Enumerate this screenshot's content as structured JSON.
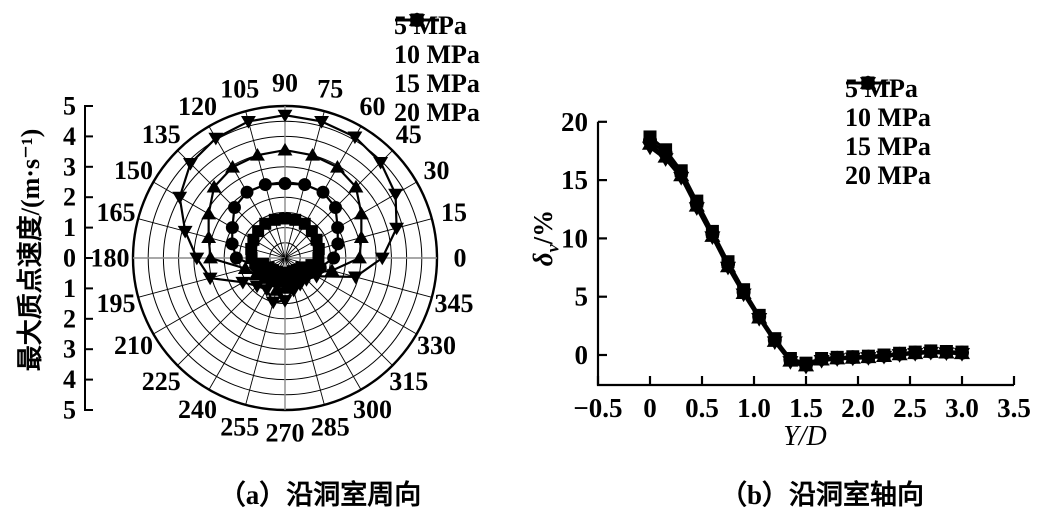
{
  "chart_data": [
    {
      "type": "polar-line",
      "caption": "（a）沿洞室周向",
      "radial_axis_label": "最大质点速度/(m·s⁻¹)",
      "radial_tick_labels": [
        "5",
        "4",
        "3",
        "2",
        "1",
        "0",
        "1",
        "2",
        "3",
        "4",
        "5"
      ],
      "r_max": 5,
      "ring_step": 0.5,
      "grid": "on",
      "legend_position": "top-right-outside",
      "angles_deg": [
        0,
        15,
        30,
        45,
        60,
        75,
        90,
        105,
        120,
        135,
        150,
        165,
        180,
        195,
        210,
        225,
        240,
        255,
        270,
        285,
        300,
        315,
        330,
        345
      ],
      "angle_labels": [
        "0",
        "15",
        "30",
        "45",
        "60",
        "75",
        "90",
        "105",
        "120",
        "135",
        "150",
        "165",
        "180",
        "195",
        "210",
        "225",
        "240",
        "255",
        "270",
        "285",
        "300",
        "315",
        "330",
        "345"
      ],
      "series": [
        {
          "name": "5 MPa",
          "marker": "square",
          "values": [
            1.1,
            1.15,
            1.2,
            1.25,
            1.3,
            1.3,
            1.3,
            1.3,
            1.3,
            1.25,
            1.2,
            1.15,
            1.1,
            0.75,
            0.62,
            0.56,
            0.52,
            0.55,
            0.52,
            0.5,
            0.5,
            0.55,
            0.62,
            0.9
          ]
        },
        {
          "name": "10 MPa",
          "marker": "circle",
          "values": [
            1.6,
            1.8,
            2.0,
            2.35,
            2.5,
            2.5,
            2.45,
            2.5,
            2.5,
            2.35,
            2.0,
            1.8,
            1.6,
            1.0,
            0.85,
            0.78,
            0.72,
            0.8,
            0.75,
            0.7,
            0.68,
            0.72,
            0.85,
            1.2
          ]
        },
        {
          "name": "15 MPa",
          "marker": "triangle-up",
          "values": [
            2.45,
            2.6,
            2.9,
            3.3,
            3.45,
            3.5,
            3.55,
            3.5,
            3.45,
            3.3,
            2.9,
            2.6,
            2.45,
            1.35,
            1.1,
            0.95,
            0.9,
            1.1,
            1.0,
            0.85,
            0.8,
            0.85,
            1.0,
            1.6
          ]
        },
        {
          "name": "20 MPa",
          "marker": "triangle-down",
          "values": [
            3.2,
            3.8,
            4.2,
            4.45,
            4.6,
            4.65,
            4.7,
            4.65,
            4.55,
            4.4,
            4.0,
            3.4,
            2.9,
            2.55,
            1.6,
            1.3,
            1.2,
            1.5,
            1.4,
            1.1,
            1.0,
            1.0,
            1.2,
            2.4
          ]
        }
      ]
    },
    {
      "type": "line",
      "caption": "（b）沿洞室轴向",
      "xlabel": "Y/D",
      "ylabel_symbol": "δ",
      "ylabel_subscript": "v",
      "ylabel_unit": "/%",
      "xlim": [
        -0.5,
        3.5
      ],
      "ylim": [
        -2.6,
        20
      ],
      "grid": "off",
      "legend_position": "top-right-inside",
      "x_tick_values": [
        -0.5,
        0,
        0.5,
        1.0,
        1.5,
        2.0,
        2.5,
        3.0,
        3.5
      ],
      "x_tick_labels": [
        "−0.5",
        "0",
        "0.5",
        "1.0",
        "1.5",
        "2.0",
        "2.5",
        "3.0",
        "3.5"
      ],
      "y_tick_values": [
        0,
        5,
        10,
        15,
        20
      ],
      "y_tick_labels": [
        "0",
        "5",
        "10",
        "15",
        "20"
      ],
      "x": [
        0,
        0.15,
        0.3,
        0.45,
        0.6,
        0.75,
        0.9,
        1.05,
        1.2,
        1.35,
        1.5,
        1.65,
        1.8,
        1.95,
        2.1,
        2.25,
        2.4,
        2.55,
        2.7,
        2.85,
        3.0
      ],
      "series": [
        {
          "name": "5 MPa",
          "marker": "square",
          "values": [
            18.7,
            17.6,
            15.8,
            13.2,
            10.6,
            8.0,
            5.6,
            3.4,
            1.4,
            -0.3,
            -0.7,
            -0.3,
            -0.2,
            -0.15,
            -0.1,
            0.0,
            0.15,
            0.25,
            0.35,
            0.3,
            0.25
          ]
        },
        {
          "name": "10 MPa",
          "marker": "circle",
          "values": [
            18.4,
            17.3,
            15.6,
            13.0,
            10.4,
            7.8,
            5.4,
            3.3,
            1.3,
            -0.4,
            -0.8,
            -0.35,
            -0.25,
            -0.2,
            -0.15,
            -0.05,
            0.1,
            0.2,
            0.3,
            0.25,
            0.2
          ]
        },
        {
          "name": "15 MPa",
          "marker": "triangle-up",
          "values": [
            18.1,
            17.0,
            15.4,
            12.8,
            10.2,
            7.6,
            5.3,
            3.2,
            1.2,
            -0.5,
            -0.9,
            -0.4,
            -0.3,
            -0.25,
            -0.2,
            -0.1,
            0.05,
            0.15,
            0.25,
            0.2,
            0.15
          ]
        },
        {
          "name": "20 MPa",
          "marker": "triangle-down",
          "values": [
            17.8,
            16.8,
            15.2,
            12.6,
            10.1,
            7.5,
            5.2,
            3.1,
            1.1,
            -0.6,
            -1.0,
            -0.5,
            -0.35,
            -0.3,
            -0.25,
            -0.15,
            0.0,
            0.1,
            0.2,
            0.15,
            0.1
          ]
        }
      ]
    }
  ]
}
